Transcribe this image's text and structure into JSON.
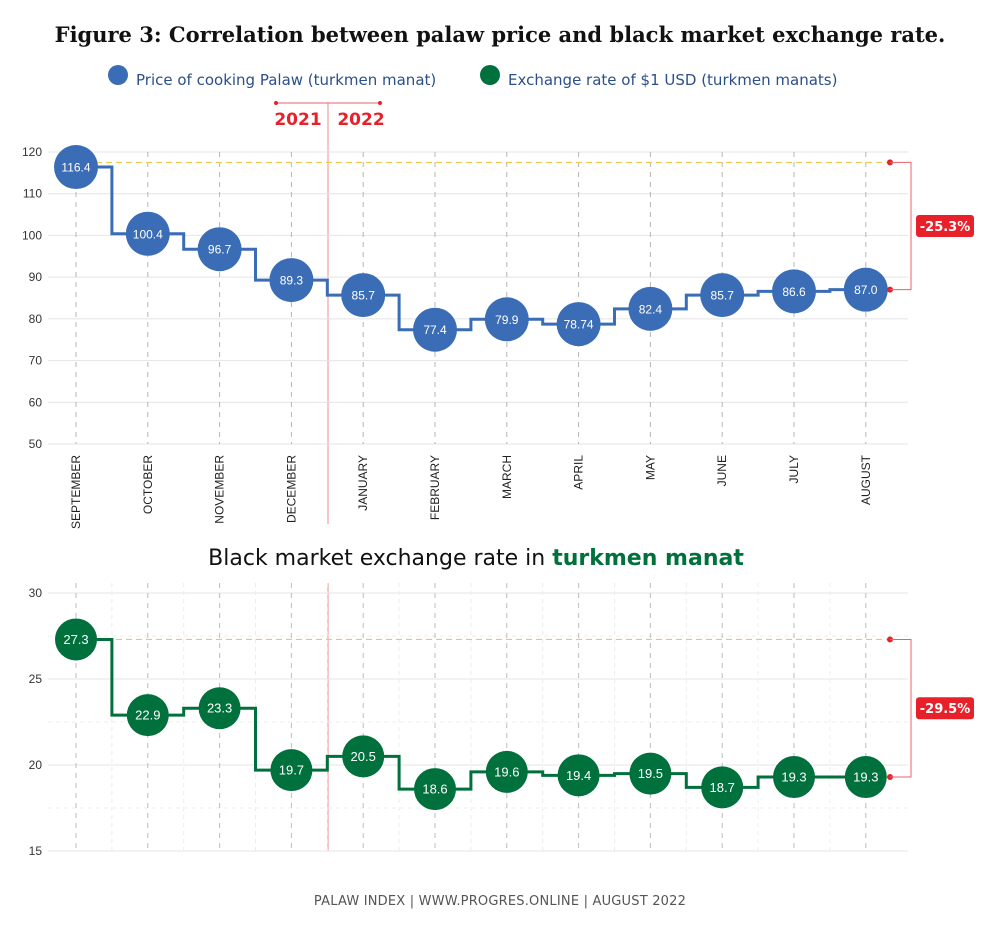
{
  "title": "Figure 3: Correlation between palaw price and black market exchange rate.",
  "legend": [
    {
      "label": "Price of cooking Palaw (turkmen manat)",
      "color": "#3a6db5"
    },
    {
      "label": "Exchange rate of $1 USD  (turkmen manats)",
      "color": "#00703c"
    }
  ],
  "year_marker": {
    "left": "2021",
    "right": "2022",
    "color": "#e8202a"
  },
  "chart_data": [
    {
      "type": "line",
      "step": true,
      "title": "",
      "categories": [
        "SEPTEMBER",
        "OCTOBER",
        "NOVEMBER",
        "DECEMBER",
        "JANUARY",
        "FEBRUARY",
        "MARCH",
        "APRIL",
        "MAY",
        "JUNE",
        "JULY",
        "AUGUST"
      ],
      "series": [
        {
          "name": "Price of cooking Palaw (turkmen manat)",
          "color": "#3a6db5",
          "values": [
            116.4,
            100.4,
            96.7,
            89.3,
            85.7,
            77.4,
            79.9,
            78.74,
            82.4,
            85.7,
            86.6,
            87.0
          ],
          "labels": [
            "116.4",
            "100.4",
            "96.7",
            "89.3",
            "85.7",
            "77.4",
            "79.9",
            "78.74",
            "82.4",
            "85.7",
            "86.6",
            "87.0"
          ]
        }
      ],
      "ylim": [
        50,
        120
      ],
      "yticks": [
        50,
        60,
        70,
        80,
        90,
        100,
        110,
        120
      ],
      "ytick_labels": [
        "50",
        "60",
        "70",
        "80",
        "90",
        "100",
        "110",
        "120"
      ],
      "reference_line": 117.5,
      "change_label": "-25.3%",
      "grid": true
    },
    {
      "type": "line",
      "step": true,
      "title": "Black market exchange rate in ",
      "title_highlight": "turkmen manat",
      "title_highlight_color": "#00703c",
      "categories": [
        "SEPTEMBER",
        "OCTOBER",
        "NOVEMBER",
        "DECEMBER",
        "JANUARY",
        "FEBRUARY",
        "MARCH",
        "APRIL",
        "MAY",
        "JUNE",
        "JULY",
        "AUGUST"
      ],
      "series": [
        {
          "name": "Exchange rate of $1 USD  (turkmen manats)",
          "color": "#00703c",
          "values": [
            27.3,
            22.9,
            23.3,
            19.7,
            20.5,
            18.6,
            19.6,
            19.4,
            19.5,
            18.7,
            19.3,
            19.3
          ],
          "labels": [
            "27.3",
            "22.9",
            "23.3",
            "19.7",
            "20.5",
            "18.6",
            "19.6",
            "19.4",
            "19.5",
            "18.7",
            "19.3",
            "19.3"
          ]
        }
      ],
      "ylim": [
        15,
        30
      ],
      "yticks": [
        15,
        20,
        25,
        30
      ],
      "ytick_labels": [
        "15",
        "20",
        "25",
        "30"
      ],
      "reference_line": 27.3,
      "change_label": "-29.5%",
      "grid": true
    }
  ],
  "footer": "PALAW INDEX  |  WWW.PROGRES.ONLINE  |  AUGUST 2022"
}
